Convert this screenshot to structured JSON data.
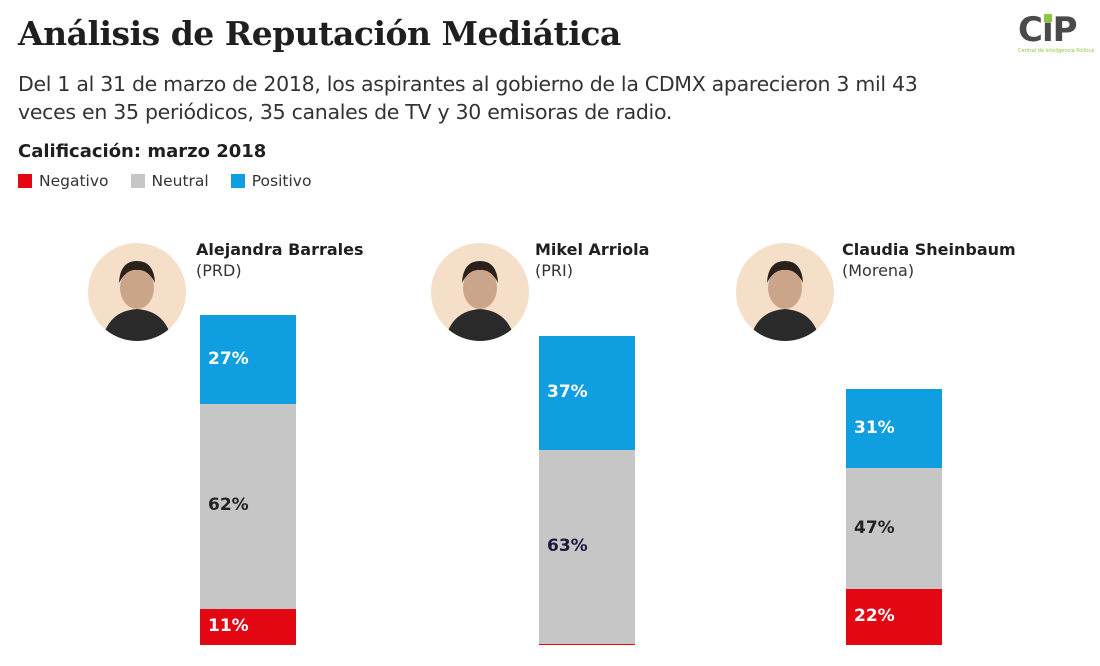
{
  "title": "Análisis de Reputación Mediática",
  "subtitle": "Del 1 al 31 de marzo de 2018, los aspirantes al gobierno de la CDMX aparecieron 3 mil 43 veces en 35 periódicos, 35 canales de TV y 30 emisoras de radio.",
  "logo": {
    "text": "CiP",
    "tagline": "Central de Inteligencia Política"
  },
  "colors": {
    "negativo": "#e30613",
    "neutral": "#c6c6c6",
    "positivo": "#0f9ee0"
  },
  "chart_data": {
    "type": "bar",
    "stacked": true,
    "title": "Calificación: marzo 2018",
    "legend": [
      "Negativo",
      "Neutral",
      "Positivo"
    ],
    "legend_placement": "top-left",
    "categories": [
      {
        "name": "Alejandra Barrales",
        "party": "(PRD)"
      },
      {
        "name": "Mikel Arriola",
        "party": "(PRI)"
      },
      {
        "name": "Claudia Sheinbaum",
        "party": "(Morena)"
      }
    ],
    "series": [
      {
        "name": "Negativo",
        "values": [
          11,
          0,
          22
        ],
        "labels": [
          "11%",
          "0%",
          "22%"
        ]
      },
      {
        "name": "Neutral",
        "values": [
          62,
          63,
          47
        ],
        "labels": [
          "62%",
          "63%",
          "47%"
        ]
      },
      {
        "name": "Positivo",
        "values": [
          27,
          37,
          31
        ],
        "labels": [
          "27%",
          "37%",
          "31%"
        ]
      }
    ]
  }
}
